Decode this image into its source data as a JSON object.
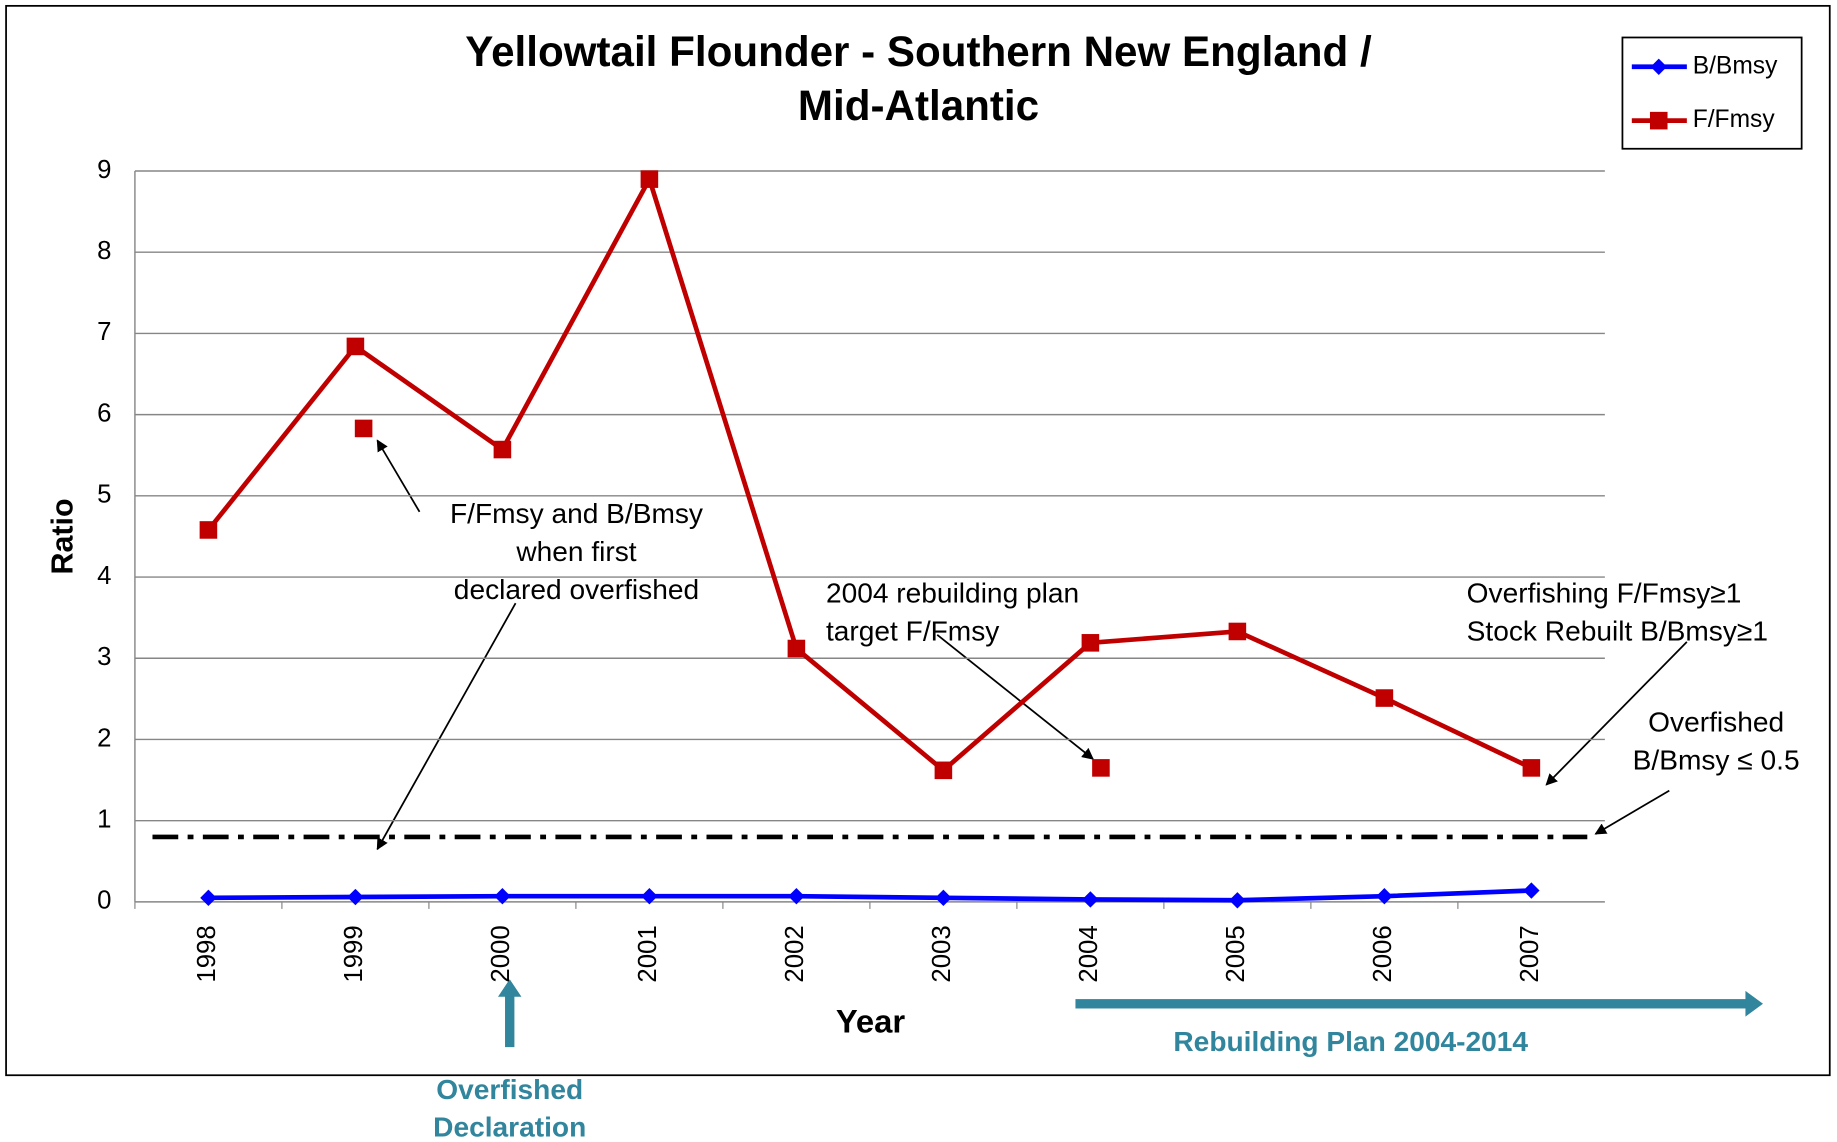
{
  "chart_data": {
    "type": "line",
    "title": [
      "Yellowtail Flounder - Southern New England /",
      "Mid-Atlantic"
    ],
    "x_label": "Year",
    "y_label": "Ratio",
    "categories": [
      "1998",
      "1999",
      "2000",
      "2001",
      "2002",
      "2003",
      "2004",
      "2005",
      "2006",
      "2007"
    ],
    "series": [
      {
        "name": "B/Bmsy",
        "color": "#0000ff",
        "marker": "diamond",
        "values": [
          0.05,
          0.06,
          0.07,
          0.07,
          0.07,
          0.05,
          0.03,
          0.02,
          0.07,
          0.14
        ]
      },
      {
        "name": "F/Fmsy",
        "color": "#c00000",
        "marker": "square",
        "values": [
          4.58,
          6.84,
          5.57,
          8.9,
          3.12,
          1.62,
          3.19,
          3.33,
          2.51,
          1.65
        ]
      }
    ],
    "markers": [
      {
        "category": "1999",
        "value": 5.83,
        "color": "#c00000"
      },
      {
        "category": "2004",
        "value": 1.65,
        "color": "#c00000"
      }
    ],
    "reference_line": 0.8,
    "ylim": [
      0,
      9
    ],
    "yticks": [
      0,
      1,
      2,
      3,
      4,
      5,
      6,
      7,
      8,
      9
    ],
    "grid": true,
    "legend": "top-right",
    "annotations": [
      [
        "F/Fmsy and B/Bmsy",
        "when first",
        "declared overfished"
      ],
      [
        "2004 rebuilding plan",
        "target F/Fmsy"
      ],
      [
        "Overfishing F/Fmsy≥1",
        "Stock Rebuilt B/Bmsy≥1"
      ],
      [
        "Overfished",
        "B/Bmsy ≤ 0.5"
      ]
    ],
    "timeline": [
      [
        "Overfished",
        "Declaration"
      ],
      [
        "Rebuilding Plan 2004-2014"
      ]
    ]
  }
}
